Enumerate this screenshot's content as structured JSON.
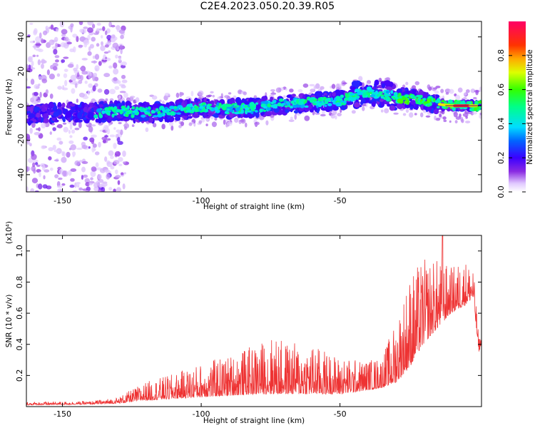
{
  "title": "C2E4.2023.050.20.39.R05",
  "chart_data": [
    {
      "type": "heatmap",
      "title": "C2E4.2023.050.20.39.R05",
      "xlabel": "Height of straight line (km)",
      "ylabel": "Frequency (Hz)",
      "xlim": [
        -163,
        1
      ],
      "ylim": [
        -50,
        49
      ],
      "xticks": [
        -150,
        -100,
        -50
      ],
      "yticks": [
        -40,
        -20,
        0,
        20,
        40
      ],
      "colorbar": {
        "label": "Normalized spectral amplitude",
        "range": [
          0,
          1
        ],
        "ticks": [
          0.0,
          0.2,
          0.4,
          0.6,
          0.8
        ]
      },
      "ridge": [
        {
          "x": -163,
          "y": -5
        },
        {
          "x": -150,
          "y": -4
        },
        {
          "x": -140,
          "y": -4
        },
        {
          "x": -130,
          "y": -3
        },
        {
          "x": -120,
          "y": -4
        },
        {
          "x": -110,
          "y": -3
        },
        {
          "x": -100,
          "y": -1
        },
        {
          "x": -90,
          "y": -2
        },
        {
          "x": -80,
          "y": -1
        },
        {
          "x": -70,
          "y": 1
        },
        {
          "x": -60,
          "y": 2
        },
        {
          "x": -50,
          "y": 3
        },
        {
          "x": -45,
          "y": 6
        },
        {
          "x": -40,
          "y": 8
        },
        {
          "x": -35,
          "y": 7
        },
        {
          "x": -30,
          "y": 5
        },
        {
          "x": -25,
          "y": 4
        },
        {
          "x": -20,
          "y": 3
        },
        {
          "x": -15,
          "y": 1
        },
        {
          "x": -10,
          "y": 0
        },
        {
          "x": 0,
          "y": 0
        }
      ],
      "strong_segment_x": [
        -14,
        -1
      ]
    },
    {
      "type": "line",
      "xlabel": "Height of straight line (km)",
      "ylabel": "SNR (10 * v/v)",
      "multiplier": "(x10⁴)",
      "xlim": [
        -163,
        1
      ],
      "ylim": [
        0,
        1.1
      ],
      "xticks": [
        -150,
        -100,
        -50
      ],
      "yticks": [
        0.2,
        0.4,
        0.6,
        0.8,
        1.0
      ],
      "color": "#ee3333",
      "envelope": [
        {
          "x": -163,
          "base": 0.01,
          "amp": 0.02
        },
        {
          "x": -140,
          "base": 0.015,
          "amp": 0.02
        },
        {
          "x": -130,
          "base": 0.02,
          "amp": 0.04
        },
        {
          "x": -120,
          "base": 0.04,
          "amp": 0.12
        },
        {
          "x": -110,
          "base": 0.05,
          "amp": 0.16
        },
        {
          "x": -100,
          "base": 0.06,
          "amp": 0.22
        },
        {
          "x": -90,
          "base": 0.07,
          "amp": 0.26
        },
        {
          "x": -80,
          "base": 0.08,
          "amp": 0.32
        },
        {
          "x": -75,
          "base": 0.08,
          "amp": 0.38
        },
        {
          "x": -70,
          "base": 0.08,
          "amp": 0.34
        },
        {
          "x": -60,
          "base": 0.08,
          "amp": 0.32
        },
        {
          "x": -50,
          "base": 0.08,
          "amp": 0.24
        },
        {
          "x": -42,
          "base": 0.1,
          "amp": 0.2
        },
        {
          "x": -35,
          "base": 0.12,
          "amp": 0.2
        },
        {
          "x": -30,
          "base": 0.15,
          "amp": 0.4
        },
        {
          "x": -25,
          "base": 0.25,
          "amp": 0.6
        },
        {
          "x": -20,
          "base": 0.4,
          "amp": 0.55
        },
        {
          "x": -15,
          "base": 0.5,
          "amp": 0.45
        },
        {
          "x": -10,
          "base": 0.6,
          "amp": 0.3
        },
        {
          "x": -5,
          "base": 0.65,
          "amp": 0.3
        },
        {
          "x": -2,
          "base": 0.7,
          "amp": 0.2
        },
        {
          "x": 0,
          "base": 0.35,
          "amp": 0.1
        },
        {
          "x": 1,
          "base": 0.4,
          "amp": 0.05
        }
      ],
      "peak": {
        "x": -13,
        "y": 1.1
      }
    }
  ]
}
